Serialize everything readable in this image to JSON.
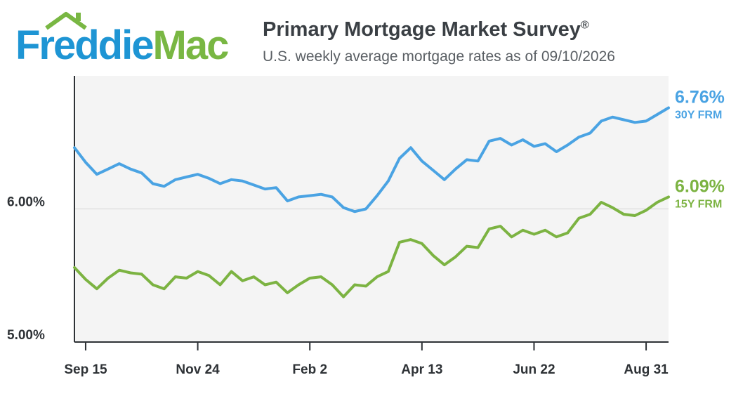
{
  "header": {
    "logo_part1": "Freddie",
    "logo_part2": "Mac",
    "title": "Primary Mortgage Market Survey",
    "title_mark": "®",
    "subtitle": "U.S. weekly average mortgage rates as of 09/10/2026"
  },
  "colors": {
    "freddie_blue": "#1e95d4",
    "mac_green": "#79b743",
    "series_30y": "#4aa3e3",
    "series_15y": "#7cb342",
    "plot_bg": "#f4f4f4"
  },
  "chart_data": {
    "type": "line",
    "ylim": [
      5.0,
      7.0
    ],
    "y_ticks": [
      {
        "value": 6.0,
        "label": "6.00%"
      },
      {
        "value": 5.0,
        "label": "5.00%"
      }
    ],
    "x_ticks": [
      {
        "index": 1,
        "label": "Sep 15"
      },
      {
        "index": 11,
        "label": "Nov 24"
      },
      {
        "index": 21,
        "label": "Feb 2"
      },
      {
        "index": 31,
        "label": "Apr 13"
      },
      {
        "index": 41,
        "label": "Jun 22"
      },
      {
        "index": 51,
        "label": "Aug 31"
      }
    ],
    "grid_y": [
      6.0
    ],
    "series": [
      {
        "name": "30Y FRM",
        "end_value_label": "6.76%",
        "values": [
          6.46,
          6.35,
          6.26,
          6.3,
          6.34,
          6.3,
          6.27,
          6.19,
          6.17,
          6.22,
          6.24,
          6.26,
          6.23,
          6.19,
          6.22,
          6.21,
          6.18,
          6.15,
          6.16,
          6.06,
          6.09,
          6.1,
          6.11,
          6.09,
          6.01,
          5.98,
          6.0,
          6.1,
          6.21,
          6.38,
          6.46,
          6.36,
          6.29,
          6.22,
          6.3,
          6.37,
          6.36,
          6.51,
          6.53,
          6.48,
          6.52,
          6.47,
          6.49,
          6.43,
          6.48,
          6.54,
          6.57,
          6.66,
          6.69,
          6.67,
          6.65,
          6.66,
          6.71,
          6.76
        ]
      },
      {
        "name": "15Y FRM",
        "end_value_label": "6.09%",
        "values": [
          5.56,
          5.47,
          5.4,
          5.48,
          5.54,
          5.52,
          5.51,
          5.43,
          5.4,
          5.49,
          5.48,
          5.53,
          5.5,
          5.43,
          5.53,
          5.46,
          5.49,
          5.43,
          5.45,
          5.37,
          5.43,
          5.48,
          5.49,
          5.43,
          5.34,
          5.43,
          5.42,
          5.49,
          5.53,
          5.75,
          5.77,
          5.74,
          5.65,
          5.58,
          5.64,
          5.72,
          5.71,
          5.85,
          5.87,
          5.79,
          5.84,
          5.81,
          5.84,
          5.79,
          5.82,
          5.93,
          5.96,
          6.05,
          6.01,
          5.96,
          5.95,
          5.99,
          6.05,
          6.09
        ]
      }
    ]
  }
}
